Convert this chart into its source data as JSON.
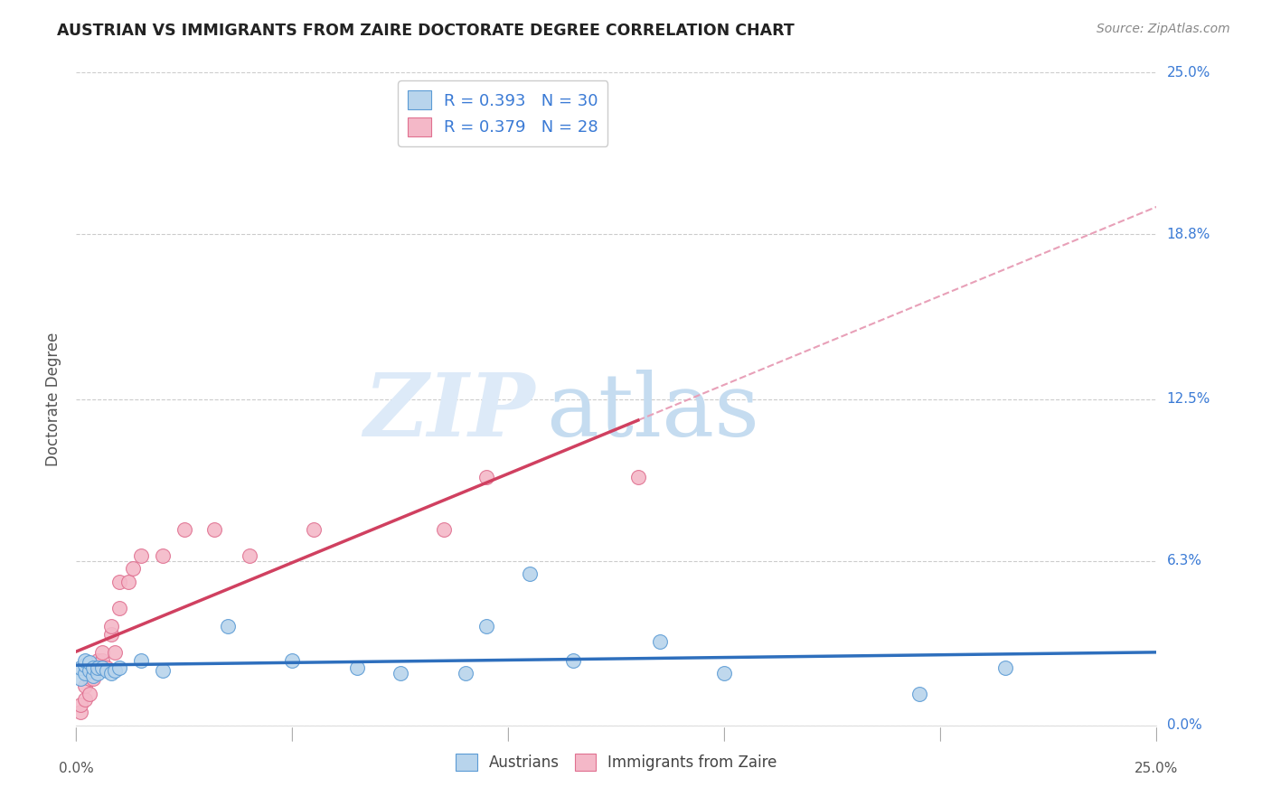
{
  "title": "AUSTRIAN VS IMMIGRANTS FROM ZAIRE DOCTORATE DEGREE CORRELATION CHART",
  "source": "Source: ZipAtlas.com",
  "ylabel": "Doctorate Degree",
  "ytick_labels": [
    "25.0%",
    "18.8%",
    "12.5%",
    "6.3%",
    "0.0%"
  ],
  "ytick_values": [
    0.25,
    0.188,
    0.125,
    0.063,
    0.0
  ],
  "legend_r1": "0.393",
  "legend_n1": "30",
  "legend_r2": "0.379",
  "legend_n2": "28",
  "austrians_x": [
    0.001,
    0.001,
    0.002,
    0.002,
    0.002,
    0.003,
    0.003,
    0.004,
    0.004,
    0.005,
    0.005,
    0.006,
    0.007,
    0.008,
    0.009,
    0.01,
    0.015,
    0.02,
    0.035,
    0.05,
    0.065,
    0.075,
    0.09,
    0.095,
    0.105,
    0.115,
    0.135,
    0.15,
    0.195,
    0.215
  ],
  "austrians_y": [
    0.018,
    0.022,
    0.02,
    0.023,
    0.025,
    0.021,
    0.024,
    0.019,
    0.022,
    0.02,
    0.022,
    0.022,
    0.021,
    0.02,
    0.021,
    0.022,
    0.025,
    0.021,
    0.038,
    0.025,
    0.022,
    0.02,
    0.02,
    0.038,
    0.058,
    0.025,
    0.032,
    0.02,
    0.012,
    0.022
  ],
  "zaire_x": [
    0.001,
    0.001,
    0.002,
    0.002,
    0.003,
    0.003,
    0.004,
    0.005,
    0.005,
    0.006,
    0.006,
    0.007,
    0.008,
    0.008,
    0.009,
    0.01,
    0.01,
    0.012,
    0.013,
    0.015,
    0.02,
    0.025,
    0.032,
    0.04,
    0.055,
    0.085,
    0.095,
    0.13
  ],
  "zaire_y": [
    0.005,
    0.008,
    0.01,
    0.015,
    0.012,
    0.018,
    0.018,
    0.022,
    0.025,
    0.025,
    0.028,
    0.022,
    0.035,
    0.038,
    0.028,
    0.045,
    0.055,
    0.055,
    0.06,
    0.065,
    0.065,
    0.075,
    0.075,
    0.065,
    0.075,
    0.075,
    0.095,
    0.095
  ],
  "color_austrians_fill": "#b8d4ec",
  "color_austrians_edge": "#5b9bd5",
  "color_zaire_fill": "#f4b8c8",
  "color_zaire_edge": "#e07090",
  "color_line_austrians": "#2e6fbd",
  "color_line_zaire": "#d04060",
  "color_dashed_zaire": "#e8a0b8",
  "background_color": "#ffffff",
  "grid_color": "#cccccc",
  "right_label_color": "#3a7ad5"
}
